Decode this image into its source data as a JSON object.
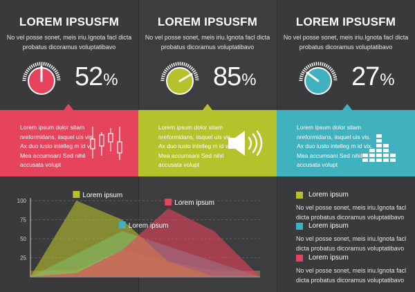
{
  "colors": {
    "background": "#3a3a3c",
    "red": "#e6435c",
    "lime": "#b5c22b",
    "teal": "#3fb1bf"
  },
  "columns": [
    {
      "title": "LOREM IPSUSFM",
      "description": "No vel posse sonet, meis iriu.Ignota facl dicta probatus dicoramus voluptatibavo",
      "percent": "52",
      "percent_symbol": "%",
      "gauge_color": "#e6435c",
      "gauge_value": 0.52,
      "band_color": "#e6435c",
      "band_text": "Lorem ipsum dolor sitam nreformidans, iisquel uis vis. Ax duo iusto intelleg m id vix. Mea accumsani Sed nihil accusata volupt",
      "band_icon": "candlestick-icon"
    },
    {
      "title": "LOREM IPSUSFM",
      "description": "No vel posse sonet, meis iriu.Ignota facl dicta probatus dicoramus voluptatibavo",
      "percent": "85",
      "percent_symbol": "%",
      "gauge_color": "#b5c22b",
      "gauge_value": 0.85,
      "band_color": "#b5c22b",
      "band_text": "Lorem ipsum dolor sitam nreformidans, iisquel uis vis. Ax duo iusto intelleg m id vix. Mea accumsani Sed nihil accusata volupt",
      "band_icon": "speaker-icon"
    },
    {
      "title": "LOREM IPSUSFM",
      "description": "No vel posse sonet, meis iriu.Ignota facl dicta probatus dicoramus voluptatibavo",
      "percent": "27",
      "percent_symbol": "%",
      "gauge_color": "#3fb1bf",
      "gauge_value": 0.27,
      "band_color": "#3fb1bf",
      "band_text": "Lorem ipsum dolor sitam nreformidans, iisquel uis vis. Ax duo iusto intelleg m id vix. Mea accumsani Sed nihil accusata volupt",
      "band_icon": "equalizer-icon"
    }
  ],
  "chart_data": {
    "type": "area",
    "y_ticks": [
      "100",
      "75",
      "50",
      "25"
    ],
    "ylim": [
      0,
      100
    ],
    "series": [
      {
        "name": "Lorem ipsum",
        "color": "#b5c22b",
        "values": [
          0,
          100,
          75,
          20,
          0,
          0
        ]
      },
      {
        "name": "Lorem ipsum",
        "color": "#e6435c",
        "values": [
          0,
          5,
          35,
          90,
          60,
          0
        ]
      },
      {
        "name": "Lorem ipsum",
        "color": "#3fb1bf",
        "values": [
          0,
          30,
          60,
          40,
          20,
          0
        ]
      }
    ],
    "fill_gradient": "#e6a84a"
  },
  "legend": [
    {
      "label": "Lorem ipsum",
      "color": "#b5c22b",
      "description": "No vel posse sonet, meis iriu.Ignota facl dicta probatus dicoramus voluptatibavo"
    },
    {
      "label": "Lorem ipsum",
      "color": "#3fb1bf",
      "description": "No vel posse sonet, meis iriu.Ignota facl dicta probatus dicoramus voluptatibavo"
    },
    {
      "label": "Lorem ipsum",
      "color": "#e6435c",
      "description": "No vel posse sonet, meis iriu.Ignota facl dicta probatus dicoramus voluptatibavo"
    }
  ]
}
